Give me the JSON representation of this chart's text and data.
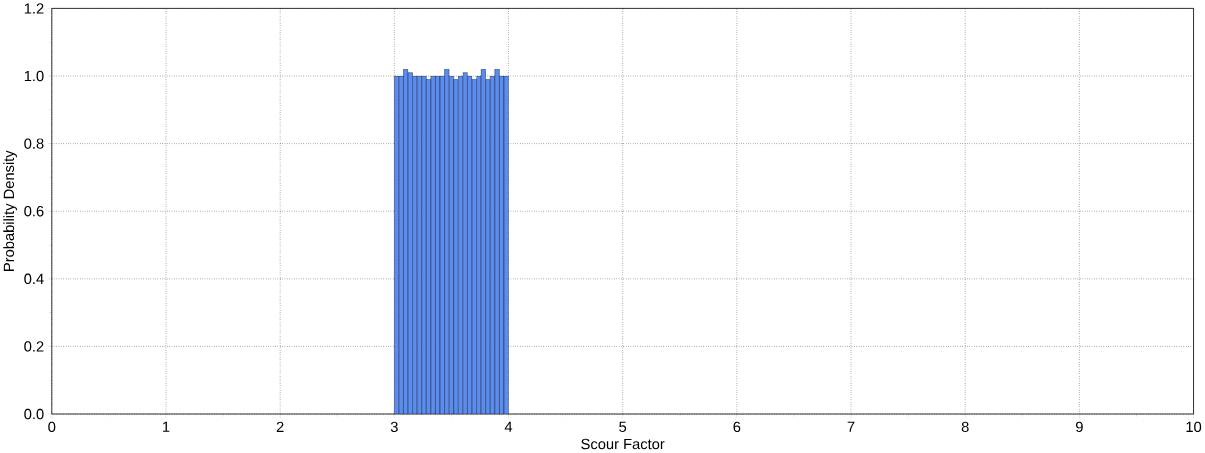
{
  "chart_data": {
    "type": "histogram",
    "xlabel": "Scour Factor",
    "ylabel": "Probability Density",
    "bins": [
      3.0,
      3.04,
      3.08,
      3.12,
      3.16,
      3.2,
      3.24,
      3.28,
      3.32,
      3.36,
      3.4,
      3.44,
      3.48,
      3.52,
      3.56,
      3.6,
      3.64,
      3.68,
      3.72,
      3.76,
      3.8,
      3.84,
      3.88,
      3.92,
      3.96,
      4.0
    ],
    "values": [
      1.0,
      1.0,
      1.02,
      1.01,
      1.0,
      1.0,
      1.0,
      0.99,
      1.0,
      1.0,
      1.0,
      1.02,
      1.0,
      0.99,
      1.0,
      1.01,
      1.0,
      0.99,
      1.0,
      1.02,
      0.99,
      1.0,
      1.02,
      1.0,
      1.0
    ],
    "color": "#5b8cf0",
    "xlim": [
      0,
      10
    ],
    "ylim": [
      0,
      1.2
    ],
    "xticks": [
      0,
      1,
      2,
      3,
      4,
      5,
      6,
      7,
      8,
      9,
      10
    ],
    "yticks": [
      {
        "value": 0,
        "label": "0.0"
      },
      {
        "value": 0.2,
        "label": "0.2"
      },
      {
        "value": 0.4,
        "label": "0.4"
      },
      {
        "value": 0.6,
        "label": "0.6"
      },
      {
        "value": 0.8,
        "label": "0.8"
      },
      {
        "value": 1.0,
        "label": "1.0"
      },
      {
        "value": 1.2,
        "label": "1.2"
      }
    ],
    "grid": true
  }
}
